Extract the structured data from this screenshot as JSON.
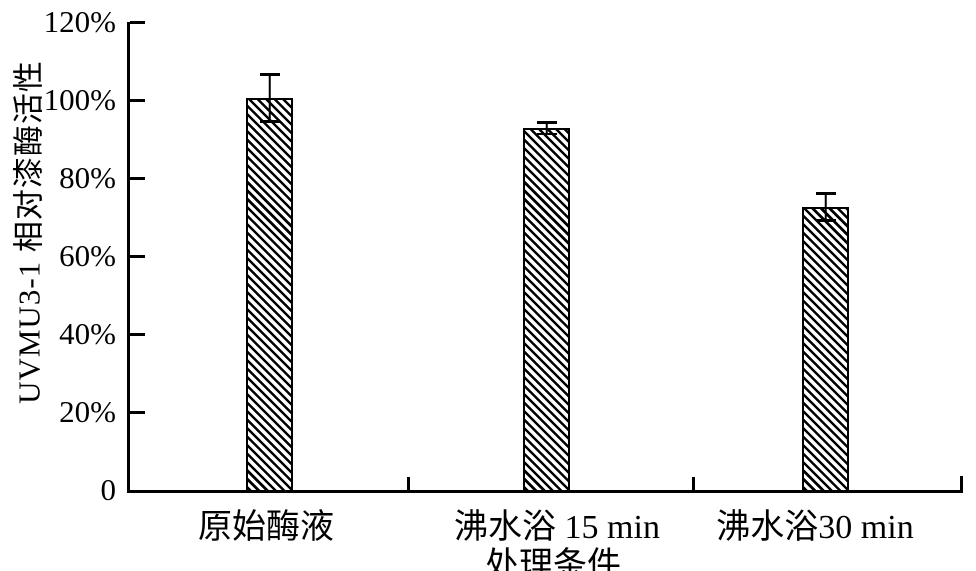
{
  "chart_data": {
    "type": "bar",
    "title": "",
    "xlabel": "处理条件",
    "ylabel": "UVMU3-1 相对漆酶活性",
    "categories": [
      "原始酶液",
      "沸水浴 15 min",
      "沸水浴30 min"
    ],
    "values": [
      100.5,
      92.8,
      72.6
    ],
    "errors": [
      6.3,
      1.8,
      3.8
    ],
    "ylim": [
      0,
      120
    ],
    "yticks": [
      0,
      20,
      40,
      60,
      80,
      100,
      120
    ],
    "ytick_labels": [
      "0",
      "20%",
      "40%",
      "60%",
      "80%",
      "100%",
      "120%"
    ],
    "grid": false,
    "legend": "none",
    "bar_style": {
      "fill": "hatch-diagonal",
      "hatch_direction": "top-left-to-bottom-right",
      "line_color": "#000000",
      "background": "#ffffff"
    }
  }
}
